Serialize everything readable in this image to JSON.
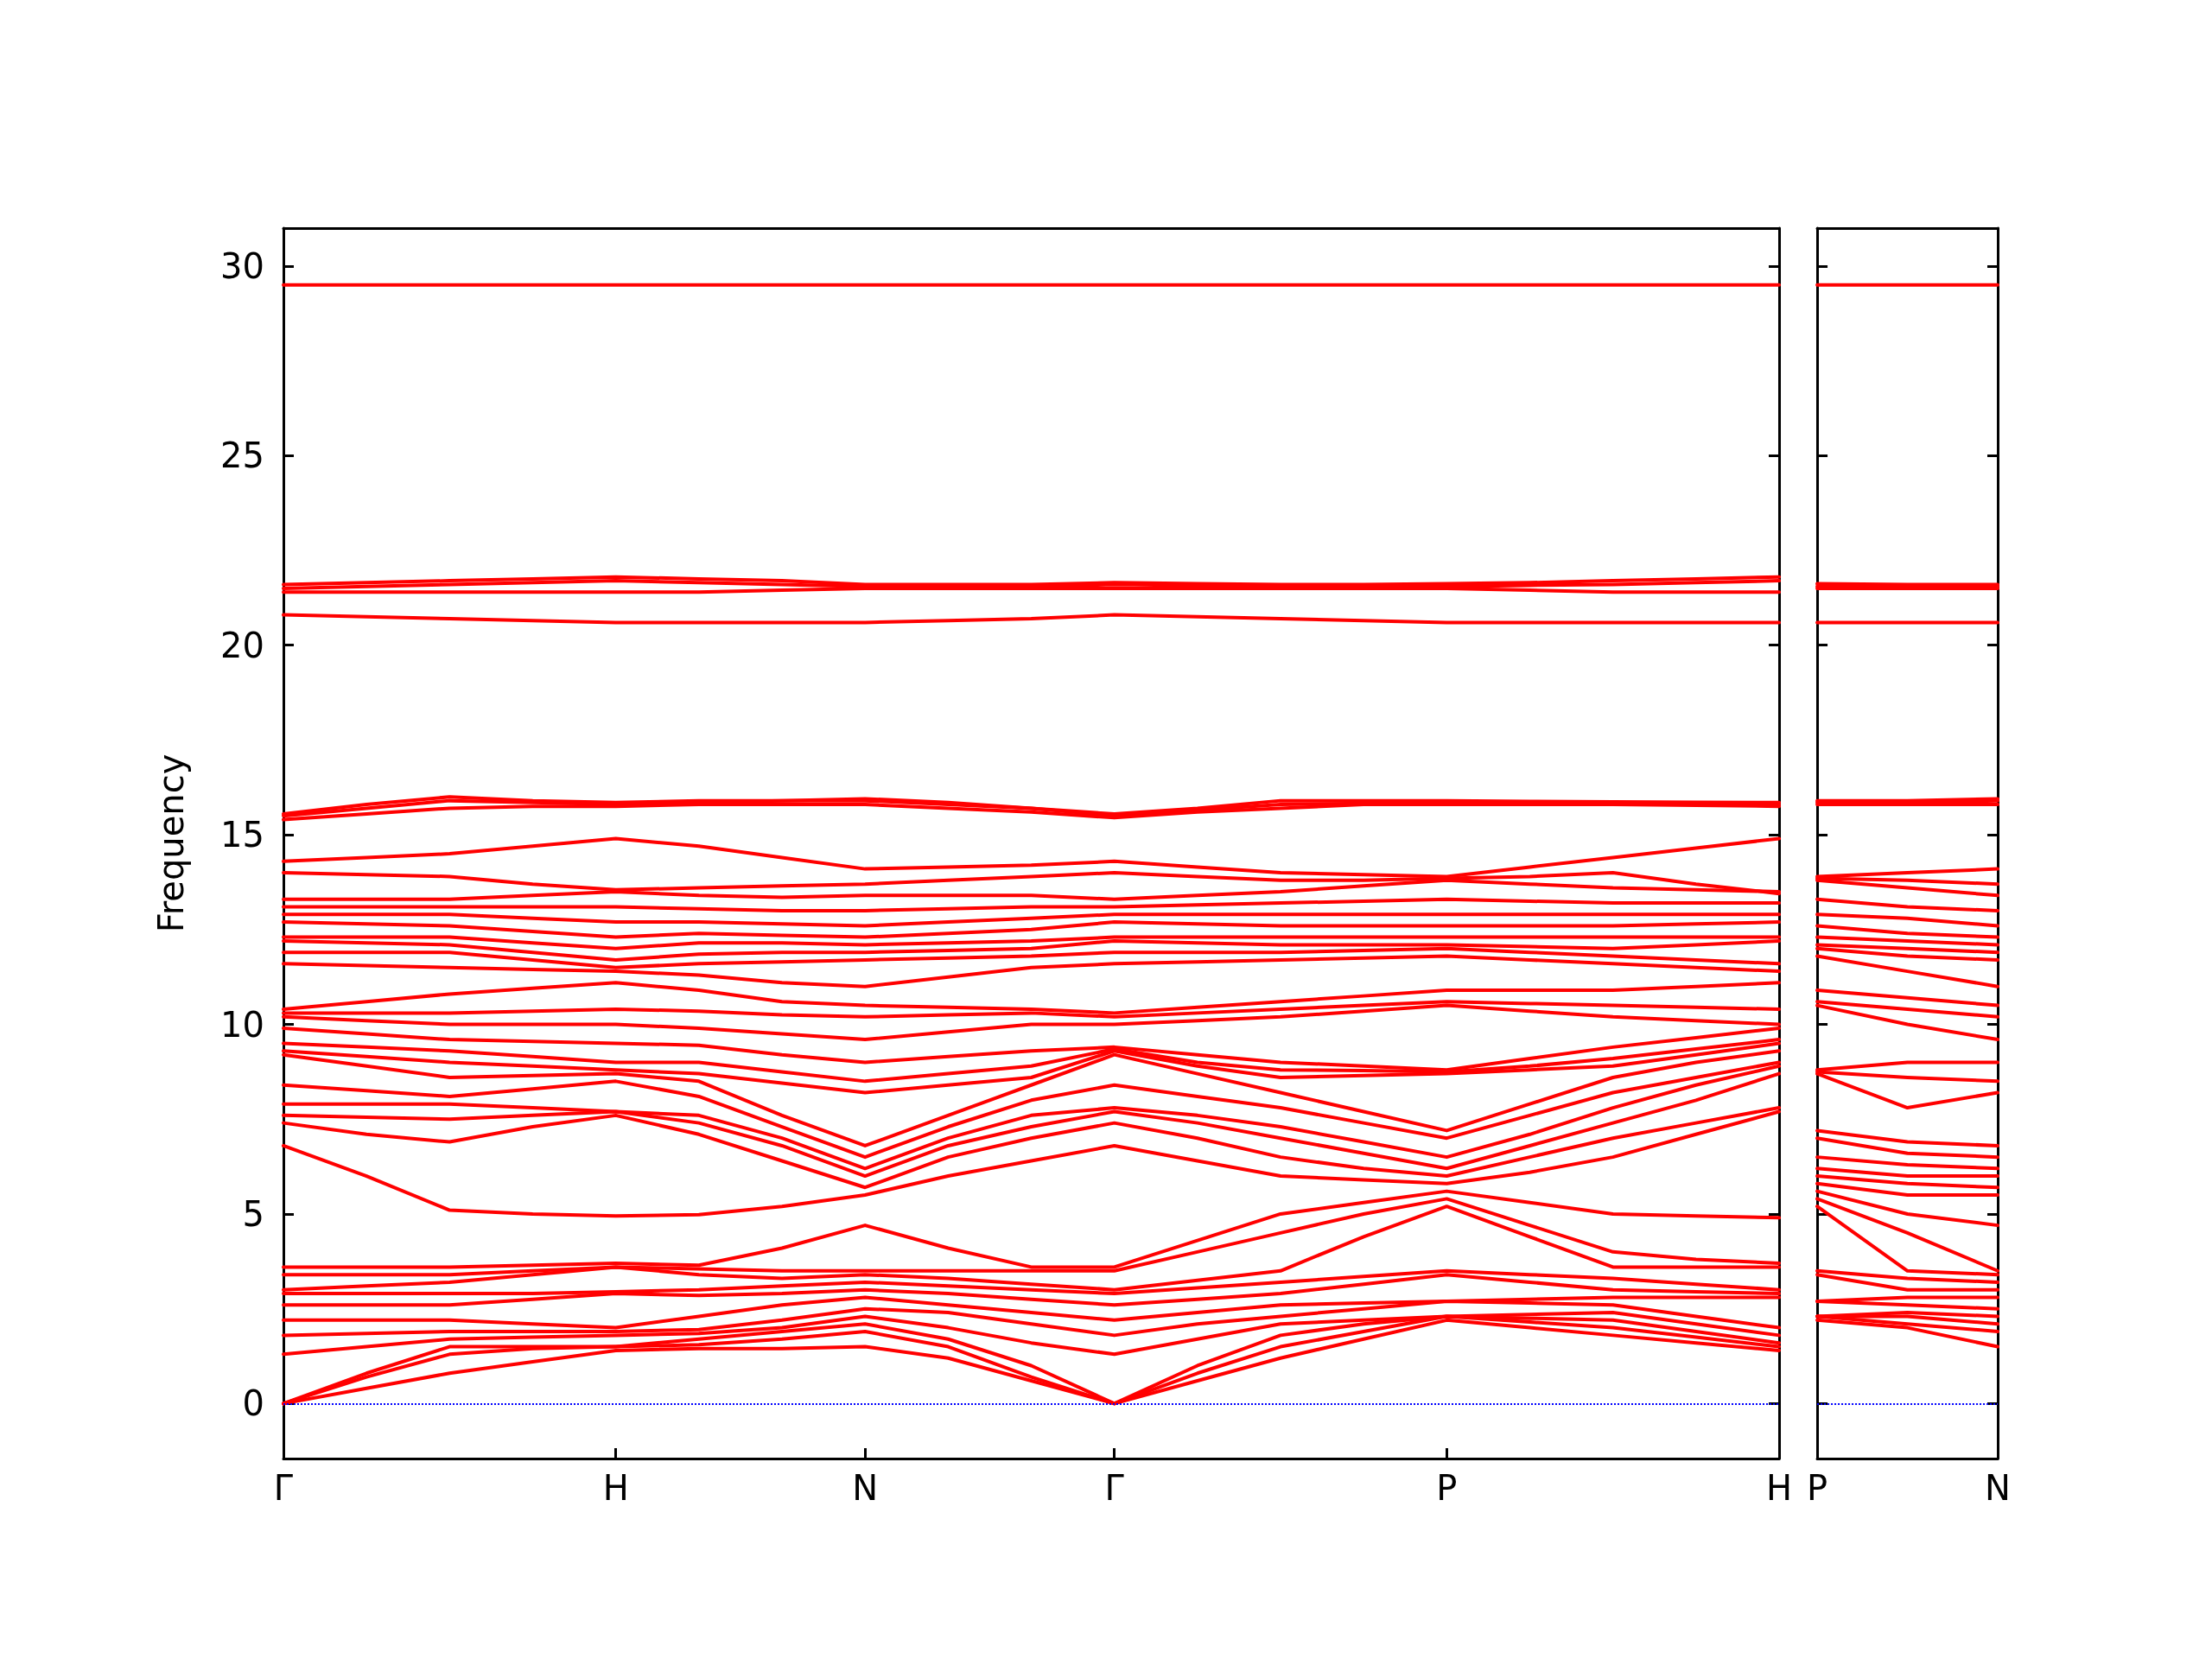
{
  "chart_data": [
    {
      "type": "line",
      "ylabel": "Frequency",
      "categories": [
        "Γ",
        null,
        null,
        null,
        "H",
        null,
        null,
        "N",
        null,
        null,
        "Γ",
        null,
        null,
        null,
        "P",
        null,
        null,
        null,
        "H"
      ],
      "ylim": [
        -1.45,
        31
      ],
      "yticks": [
        0,
        5,
        10,
        15,
        20,
        25,
        30
      ],
      "grid": false,
      "marker": "none",
      "line_style": "solid",
      "ref_lines": [
        {
          "axis": "y",
          "value": 0,
          "label": null,
          "color": "#0000ff",
          "line_style": "dotted"
        }
      ],
      "series": [
        {
          "color": "#ff0000",
          "values": [
            0,
            0.4,
            0.8,
            1.1,
            1.4,
            1.45,
            1.45,
            1.5,
            1.2,
            0.6,
            0,
            0.6,
            1.2,
            1.7,
            2.2,
            2.0,
            1.8,
            1.6,
            1.4
          ]
        },
        {
          "color": "#ff0000",
          "values": [
            0,
            0.7,
            1.3,
            1.45,
            1.5,
            1.55,
            1.7,
            1.9,
            1.5,
            0.7,
            0,
            0.8,
            1.5,
            1.9,
            2.3,
            2.15,
            2.0,
            1.75,
            1.5
          ]
        },
        {
          "color": "#ff0000",
          "values": [
            0,
            0.8,
            1.5,
            1.5,
            1.5,
            1.7,
            1.9,
            2.1,
            1.7,
            1.0,
            0,
            1.0,
            1.8,
            2.1,
            2.3,
            2.25,
            2.2,
            1.9,
            1.6
          ]
        },
        {
          "color": "#ff0000",
          "values": [
            1.3,
            1.5,
            1.7,
            1.75,
            1.8,
            1.85,
            2.0,
            2.3,
            2.0,
            1.6,
            1.3,
            1.7,
            2.1,
            2.2,
            2.3,
            2.35,
            2.4,
            2.1,
            1.8
          ]
        },
        {
          "color": "#ff0000",
          "values": [
            1.8,
            1.85,
            1.9,
            1.9,
            1.9,
            1.95,
            2.2,
            2.5,
            2.4,
            2.1,
            1.8,
            2.1,
            2.3,
            2.5,
            2.7,
            2.65,
            2.6,
            2.3,
            2.0
          ]
        },
        {
          "color": "#ff0000",
          "values": [
            2.2,
            2.2,
            2.2,
            2.1,
            2.0,
            2.3,
            2.6,
            2.8,
            2.6,
            2.4,
            2.2,
            2.4,
            2.6,
            2.65,
            2.7,
            2.75,
            2.8,
            2.8,
            2.8
          ]
        },
        {
          "color": "#ff0000",
          "values": [
            2.6,
            2.6,
            2.6,
            2.75,
            2.9,
            2.85,
            2.9,
            3.0,
            2.9,
            2.75,
            2.6,
            2.75,
            2.9,
            3.15,
            3.4,
            3.2,
            3.0,
            2.95,
            2.9
          ]
        },
        {
          "color": "#ff0000",
          "values": [
            2.9,
            2.9,
            2.9,
            2.9,
            2.95,
            3.0,
            3.1,
            3.2,
            3.1,
            3.0,
            2.9,
            3.05,
            3.2,
            3.35,
            3.5,
            3.4,
            3.3,
            3.15,
            3.0
          ]
        },
        {
          "color": "#ff0000",
          "values": [
            3.0,
            3.1,
            3.2,
            3.4,
            3.6,
            3.4,
            3.3,
            3.4,
            3.3,
            3.15,
            3.0,
            3.25,
            3.5,
            4.4,
            5.2,
            4.4,
            3.6,
            3.6,
            3.6
          ]
        },
        {
          "color": "#ff0000",
          "values": [
            3.4,
            3.4,
            3.4,
            3.5,
            3.6,
            3.55,
            3.5,
            3.5,
            3.5,
            3.5,
            3.5,
            4.0,
            4.5,
            5.0,
            5.4,
            4.7,
            4.0,
            3.8,
            3.7
          ]
        },
        {
          "color": "#ff0000",
          "values": [
            3.6,
            3.6,
            3.6,
            3.65,
            3.7,
            3.65,
            4.1,
            4.7,
            4.1,
            3.6,
            3.6,
            4.3,
            5.0,
            5.3,
            5.6,
            5.3,
            5.0,
            4.95,
            4.9
          ]
        },
        {
          "color": "#ff0000",
          "values": [
            6.8,
            6.0,
            5.1,
            5.0,
            4.95,
            4.98,
            5.2,
            5.5,
            6.0,
            6.4,
            6.8,
            6.4,
            6.0,
            5.9,
            5.8,
            6.1,
            6.5,
            7.1,
            7.7
          ]
        },
        {
          "color": "#ff0000",
          "values": [
            7.4,
            7.1,
            6.9,
            7.3,
            7.6,
            7.1,
            6.4,
            5.7,
            6.5,
            7.0,
            7.4,
            7.0,
            6.5,
            6.2,
            6.0,
            6.5,
            7.0,
            7.4,
            7.8
          ]
        },
        {
          "color": "#ff0000",
          "values": [
            7.6,
            7.55,
            7.5,
            7.6,
            7.7,
            7.4,
            6.8,
            6.0,
            6.8,
            7.3,
            7.7,
            7.4,
            7.0,
            6.6,
            6.2,
            6.8,
            7.4,
            8.0,
            8.7
          ]
        },
        {
          "color": "#ff0000",
          "values": [
            7.9,
            7.9,
            7.9,
            7.8,
            7.7,
            7.6,
            7.0,
            6.2,
            7.0,
            7.6,
            7.8,
            7.6,
            7.3,
            6.9,
            6.5,
            7.1,
            7.8,
            8.4,
            8.9
          ]
        },
        {
          "color": "#ff0000",
          "values": [
            8.4,
            8.25,
            8.1,
            8.3,
            8.5,
            8.1,
            7.3,
            6.5,
            7.3,
            8.0,
            8.4,
            8.1,
            7.8,
            7.4,
            7.0,
            7.6,
            8.2,
            8.6,
            9.0
          ]
        },
        {
          "color": "#ff0000",
          "values": [
            9.2,
            8.9,
            8.6,
            8.65,
            8.7,
            8.5,
            7.6,
            6.8,
            7.6,
            8.4,
            9.2,
            8.7,
            8.2,
            7.7,
            7.2,
            7.9,
            8.6,
            9.0,
            9.3
          ]
        },
        {
          "color": "#ff0000",
          "values": [
            9.3,
            9.15,
            9.0,
            8.9,
            8.8,
            8.7,
            8.45,
            8.2,
            8.4,
            8.6,
            9.3,
            8.9,
            8.6,
            8.65,
            8.7,
            8.8,
            8.9,
            9.2,
            9.5
          ]
        },
        {
          "color": "#ff0000",
          "values": [
            9.5,
            9.4,
            9.3,
            9.15,
            9.0,
            9.0,
            8.75,
            8.5,
            8.7,
            8.9,
            9.35,
            9.0,
            8.8,
            8.78,
            8.75,
            8.9,
            9.1,
            9.35,
            9.6
          ]
        },
        {
          "color": "#ff0000",
          "values": [
            9.9,
            9.75,
            9.6,
            9.55,
            9.5,
            9.45,
            9.2,
            9.0,
            9.15,
            9.3,
            9.4,
            9.2,
            9.0,
            8.9,
            8.8,
            9.1,
            9.4,
            9.65,
            9.9
          ]
        },
        {
          "color": "#ff0000",
          "values": [
            10.2,
            10.1,
            10.0,
            10.0,
            10.0,
            9.9,
            9.75,
            9.6,
            9.8,
            10.0,
            10.0,
            10.1,
            10.2,
            10.35,
            10.5,
            10.35,
            10.2,
            10.1,
            10.0
          ]
        },
        {
          "color": "#ff0000",
          "values": [
            10.3,
            10.3,
            10.3,
            10.35,
            10.4,
            10.35,
            10.25,
            10.2,
            10.25,
            10.3,
            10.2,
            10.3,
            10.4,
            10.5,
            10.6,
            10.55,
            10.5,
            10.45,
            10.4
          ]
        },
        {
          "color": "#ff0000",
          "values": [
            10.4,
            10.6,
            10.8,
            10.95,
            11.1,
            10.9,
            10.6,
            10.5,
            10.45,
            10.4,
            10.3,
            10.45,
            10.6,
            10.75,
            10.9,
            10.9,
            10.9,
            11.0,
            11.1
          ]
        },
        {
          "color": "#ff0000",
          "values": [
            11.6,
            11.55,
            11.5,
            11.45,
            11.4,
            11.3,
            11.1,
            11.0,
            11.25,
            11.5,
            11.6,
            11.65,
            11.7,
            11.75,
            11.8,
            11.7,
            11.6,
            11.5,
            11.4
          ]
        },
        {
          "color": "#ff0000",
          "values": [
            11.9,
            11.9,
            11.9,
            11.7,
            11.5,
            11.6,
            11.65,
            11.7,
            11.75,
            11.8,
            11.9,
            11.9,
            11.9,
            11.95,
            12.0,
            11.9,
            11.8,
            11.7,
            11.6
          ]
        },
        {
          "color": "#ff0000",
          "values": [
            12.2,
            12.15,
            12.1,
            11.9,
            11.7,
            11.85,
            11.9,
            11.9,
            11.95,
            12.0,
            12.2,
            12.15,
            12.1,
            12.1,
            12.1,
            12.05,
            12.0,
            12.1,
            12.2
          ]
        },
        {
          "color": "#ff0000",
          "values": [
            12.3,
            12.3,
            12.3,
            12.15,
            12.0,
            12.15,
            12.15,
            12.1,
            12.15,
            12.2,
            12.3,
            12.3,
            12.3,
            12.3,
            12.3,
            12.3,
            12.3,
            12.3,
            12.3
          ]
        },
        {
          "color": "#ff0000",
          "values": [
            12.7,
            12.65,
            12.6,
            12.45,
            12.3,
            12.4,
            12.35,
            12.3,
            12.4,
            12.5,
            12.7,
            12.65,
            12.6,
            12.6,
            12.6,
            12.6,
            12.6,
            12.65,
            12.7
          ]
        },
        {
          "color": "#ff0000",
          "values": [
            12.9,
            12.9,
            12.9,
            12.8,
            12.7,
            12.7,
            12.65,
            12.6,
            12.7,
            12.8,
            12.9,
            12.9,
            12.9,
            12.9,
            12.9,
            12.9,
            12.9,
            12.9,
            12.9
          ]
        },
        {
          "color": "#ff0000",
          "values": [
            13.1,
            13.1,
            13.1,
            13.1,
            13.1,
            13.05,
            13.0,
            13.0,
            13.05,
            13.1,
            13.1,
            13.15,
            13.2,
            13.25,
            13.3,
            13.25,
            13.2,
            13.2,
            13.2
          ]
        },
        {
          "color": "#ff0000",
          "values": [
            13.3,
            13.3,
            13.3,
            13.4,
            13.5,
            13.4,
            13.35,
            13.4,
            13.4,
            13.4,
            13.3,
            13.4,
            13.5,
            13.65,
            13.8,
            13.7,
            13.6,
            13.55,
            13.5
          ]
        },
        {
          "color": "#ff0000",
          "values": [
            14.0,
            13.95,
            13.9,
            13.7,
            13.55,
            13.6,
            13.65,
            13.7,
            13.8,
            13.9,
            14.0,
            13.9,
            13.8,
            13.8,
            13.85,
            13.9,
            14.0,
            13.7,
            13.45
          ]
        },
        {
          "color": "#ff0000",
          "values": [
            14.3,
            14.4,
            14.5,
            14.7,
            14.9,
            14.7,
            14.4,
            14.1,
            14.15,
            14.2,
            14.3,
            14.15,
            14.0,
            13.95,
            13.9,
            14.15,
            14.4,
            14.65,
            14.9
          ]
        },
        {
          "color": "#ff0000",
          "values": [
            15.4,
            15.55,
            15.7,
            15.75,
            15.75,
            15.8,
            15.8,
            15.8,
            15.7,
            15.6,
            15.45,
            15.6,
            15.7,
            15.8,
            15.8,
            15.8,
            15.8,
            15.78,
            15.75
          ]
        },
        {
          "color": "#ff0000",
          "values": [
            15.5,
            15.7,
            15.9,
            15.85,
            15.8,
            15.85,
            15.9,
            15.9,
            15.8,
            15.7,
            15.5,
            15.65,
            15.8,
            15.83,
            15.85,
            15.85,
            15.85,
            15.83,
            15.8
          ]
        },
        {
          "color": "#ff0000",
          "values": [
            15.55,
            15.8,
            16.0,
            15.9,
            15.85,
            15.9,
            15.9,
            15.95,
            15.85,
            15.7,
            15.55,
            15.7,
            15.9,
            15.9,
            15.9,
            15.88,
            15.87,
            15.86,
            15.85
          ]
        },
        {
          "color": "#ff0000",
          "values": [
            20.8,
            20.75,
            20.7,
            20.65,
            20.6,
            20.6,
            20.6,
            20.6,
            20.65,
            20.7,
            20.8,
            20.75,
            20.7,
            20.65,
            20.6,
            20.6,
            20.6,
            20.6,
            20.6
          ]
        },
        {
          "color": "#ff0000",
          "values": [
            21.4,
            21.4,
            21.4,
            21.4,
            21.4,
            21.4,
            21.45,
            21.5,
            21.5,
            21.5,
            21.5,
            21.5,
            21.5,
            21.5,
            21.5,
            21.45,
            21.4,
            21.4,
            21.4
          ]
        },
        {
          "color": "#ff0000",
          "values": [
            21.5,
            21.55,
            21.6,
            21.65,
            21.7,
            21.65,
            21.6,
            21.55,
            21.55,
            21.55,
            21.6,
            21.58,
            21.55,
            21.55,
            21.55,
            21.58,
            21.6,
            21.65,
            21.7
          ]
        },
        {
          "color": "#ff0000",
          "values": [
            21.6,
            21.65,
            21.7,
            21.75,
            21.8,
            21.75,
            21.7,
            21.6,
            21.6,
            21.6,
            21.65,
            21.62,
            21.6,
            21.6,
            21.62,
            21.65,
            21.7,
            21.75,
            21.8
          ]
        },
        {
          "color": "#ff0000",
          "values": [
            29.5,
            29.5,
            29.5,
            29.5,
            29.5,
            29.5,
            29.5,
            29.5,
            29.5,
            29.5,
            29.5,
            29.5,
            29.5,
            29.5,
            29.5,
            29.5,
            29.5,
            29.5,
            29.5
          ]
        }
      ]
    },
    {
      "type": "line",
      "categories": [
        "P",
        null,
        "N"
      ],
      "ylim": [
        -1.45,
        31
      ],
      "yticks": [
        0,
        5,
        10,
        15,
        20,
        25,
        30
      ],
      "tick_labels": "x",
      "grid": false,
      "marker": "none",
      "line_style": "solid",
      "ref_lines": [
        {
          "axis": "y",
          "value": 0,
          "label": null,
          "color": "#0000ff",
          "line_style": "dotted"
        }
      ],
      "series": [
        {
          "color": "#ff0000",
          "values": [
            2.2,
            2.0,
            1.5
          ]
        },
        {
          "color": "#ff0000",
          "values": [
            2.3,
            2.1,
            1.9
          ]
        },
        {
          "color": "#ff0000",
          "values": [
            2.3,
            2.3,
            2.1
          ]
        },
        {
          "color": "#ff0000",
          "values": [
            2.3,
            2.4,
            2.3
          ]
        },
        {
          "color": "#ff0000",
          "values": [
            2.7,
            2.6,
            2.5
          ]
        },
        {
          "color": "#ff0000",
          "values": [
            2.7,
            2.8,
            2.8
          ]
        },
        {
          "color": "#ff0000",
          "values": [
            3.4,
            3.0,
            3.0
          ]
        },
        {
          "color": "#ff0000",
          "values": [
            3.5,
            3.3,
            3.2
          ]
        },
        {
          "color": "#ff0000",
          "values": [
            5.2,
            3.5,
            3.4
          ]
        },
        {
          "color": "#ff0000",
          "values": [
            5.4,
            4.5,
            3.5
          ]
        },
        {
          "color": "#ff0000",
          "values": [
            5.6,
            5.0,
            4.7
          ]
        },
        {
          "color": "#ff0000",
          "values": [
            5.8,
            5.5,
            5.5
          ]
        },
        {
          "color": "#ff0000",
          "values": [
            6.0,
            5.8,
            5.7
          ]
        },
        {
          "color": "#ff0000",
          "values": [
            6.2,
            6.0,
            6.0
          ]
        },
        {
          "color": "#ff0000",
          "values": [
            6.5,
            6.3,
            6.2
          ]
        },
        {
          "color": "#ff0000",
          "values": [
            7.0,
            6.6,
            6.5
          ]
        },
        {
          "color": "#ff0000",
          "values": [
            7.2,
            6.9,
            6.8
          ]
        },
        {
          "color": "#ff0000",
          "values": [
            8.7,
            7.8,
            8.2
          ]
        },
        {
          "color": "#ff0000",
          "values": [
            8.75,
            8.6,
            8.5
          ]
        },
        {
          "color": "#ff0000",
          "values": [
            8.8,
            9.0,
            9.0
          ]
        },
        {
          "color": "#ff0000",
          "values": [
            10.5,
            10.0,
            9.6
          ]
        },
        {
          "color": "#ff0000",
          "values": [
            10.6,
            10.4,
            10.2
          ]
        },
        {
          "color": "#ff0000",
          "values": [
            10.9,
            10.7,
            10.5
          ]
        },
        {
          "color": "#ff0000",
          "values": [
            11.8,
            11.4,
            11.0
          ]
        },
        {
          "color": "#ff0000",
          "values": [
            12.0,
            11.8,
            11.7
          ]
        },
        {
          "color": "#ff0000",
          "values": [
            12.1,
            12.0,
            11.9
          ]
        },
        {
          "color": "#ff0000",
          "values": [
            12.3,
            12.2,
            12.1
          ]
        },
        {
          "color": "#ff0000",
          "values": [
            12.6,
            12.4,
            12.3
          ]
        },
        {
          "color": "#ff0000",
          "values": [
            12.9,
            12.8,
            12.6
          ]
        },
        {
          "color": "#ff0000",
          "values": [
            13.3,
            13.1,
            13.0
          ]
        },
        {
          "color": "#ff0000",
          "values": [
            13.8,
            13.6,
            13.4
          ]
        },
        {
          "color": "#ff0000",
          "values": [
            13.85,
            13.8,
            13.7
          ]
        },
        {
          "color": "#ff0000",
          "values": [
            13.9,
            14.0,
            14.1
          ]
        },
        {
          "color": "#ff0000",
          "values": [
            15.8,
            15.8,
            15.8
          ]
        },
        {
          "color": "#ff0000",
          "values": [
            15.85,
            15.85,
            15.9
          ]
        },
        {
          "color": "#ff0000",
          "values": [
            15.9,
            15.9,
            15.95
          ]
        },
        {
          "color": "#ff0000",
          "values": [
            20.6,
            20.6,
            20.6
          ]
        },
        {
          "color": "#ff0000",
          "values": [
            21.5,
            21.5,
            21.5
          ]
        },
        {
          "color": "#ff0000",
          "values": [
            21.55,
            21.55,
            21.55
          ]
        },
        {
          "color": "#ff0000",
          "values": [
            21.62,
            21.6,
            21.6
          ]
        },
        {
          "color": "#ff0000",
          "values": [
            29.5,
            29.5,
            29.5
          ]
        }
      ]
    }
  ]
}
